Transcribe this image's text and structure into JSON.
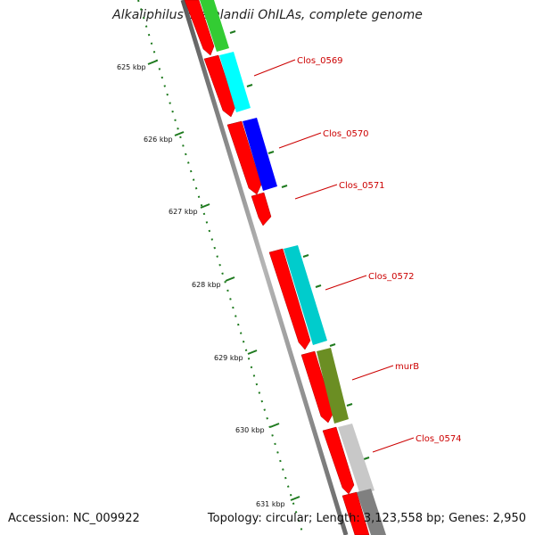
{
  "title": "Alkaliphilus oremlandii OhILAs, complete genome",
  "footer": {
    "accession": "Accession: NC_009922",
    "stats": "Topology: circular; Length: 3,123,558 bp; Genes: 2,950"
  },
  "scale_labels": [
    "625 kbp",
    "626 kbp",
    "627 kbp",
    "628 kbp",
    "629 kbp",
    "630 kbp",
    "631 kbp"
  ],
  "gene_labels": [
    "Clos_0569",
    "Clos_0570",
    "Clos_0571",
    "Clos_0572",
    "murB",
    "Clos_0574"
  ],
  "colors": {
    "gene_red": "#ff0000",
    "label_red": "#cc0000",
    "scale_green": "#1e7a1e",
    "backbone_grey": "#8c8c8c",
    "cds_green": "#33cc33",
    "cds_cyan": "#00ffff",
    "cds_blue": "#0000ff",
    "cds_teal": "#00cccc",
    "cds_olive": "#6b8e23",
    "cds_lightgrey": "#c8c8c8",
    "cds_darkgrey": "#808080"
  }
}
